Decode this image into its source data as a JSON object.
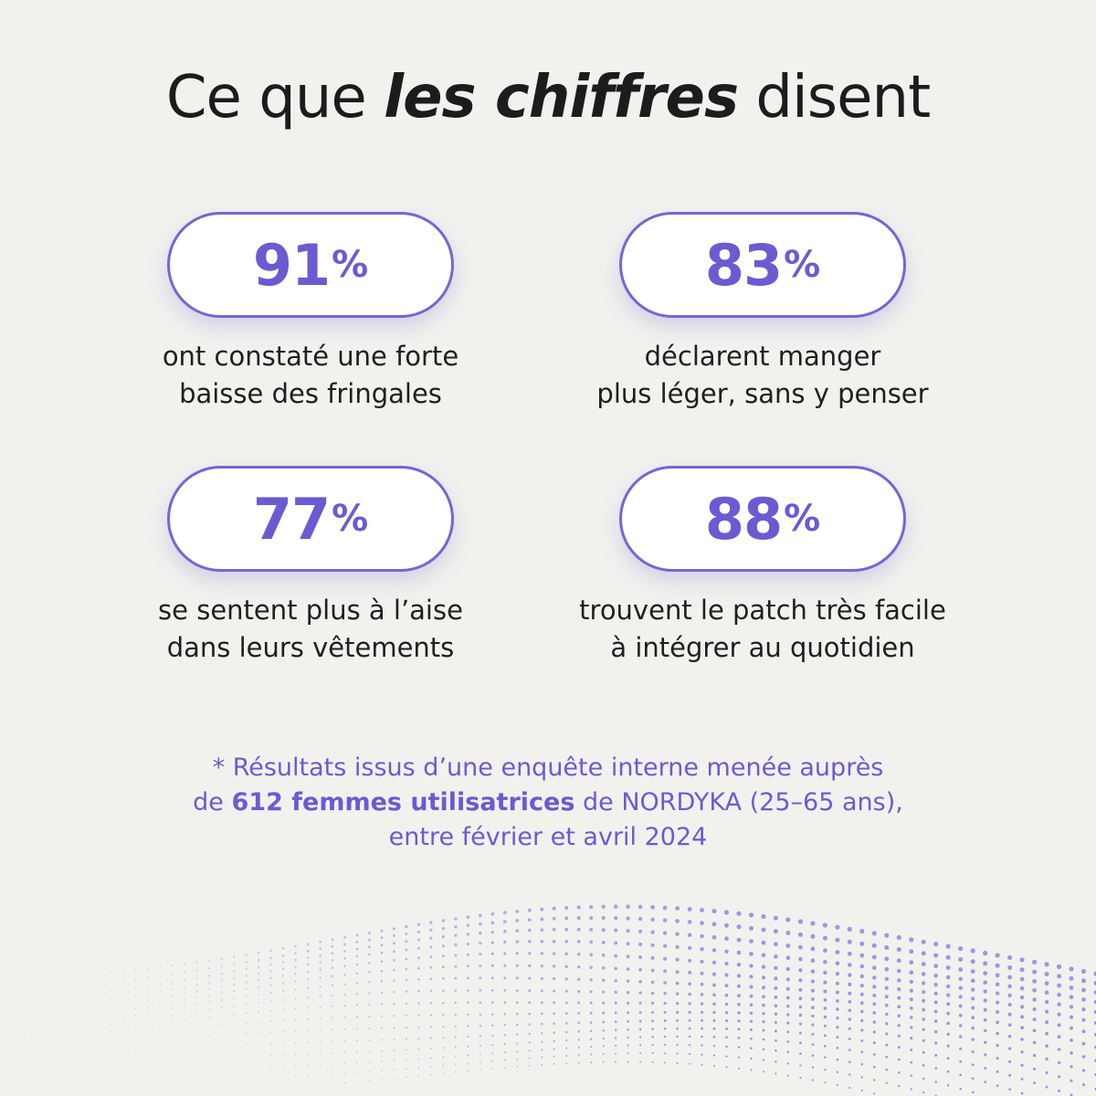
{
  "headline": {
    "prefix": "Ce que",
    "emphasis": "les chiffres",
    "suffix": "disent"
  },
  "stats": [
    {
      "value": "91",
      "unit": "%",
      "line1": "ont constaté une forte",
      "line2": "baisse des fringales"
    },
    {
      "value": "83",
      "unit": "%",
      "line1": "déclarent manger",
      "line2": "plus léger, sans y penser"
    },
    {
      "value": "77",
      "unit": "%",
      "line1": "se sentent plus à l’aise",
      "line2": "dans leurs vêtements"
    },
    {
      "value": "88",
      "unit": "%",
      "line1": "trouvent le patch très facile",
      "line2": "à intégrer au quotidien"
    }
  ],
  "footnote": {
    "line1": "* Résultats issus d’une enquête interne menée auprès",
    "line2_before": "de",
    "line2_bold": "612 femmes utilisatrices",
    "line2_after": "de NORDYKA (25–65 ans),",
    "line3": "entre février et avril 2024"
  },
  "colors": {
    "accent": "#6a5bd2",
    "background": "#f2f1ee",
    "text": "#1c1c1c"
  }
}
